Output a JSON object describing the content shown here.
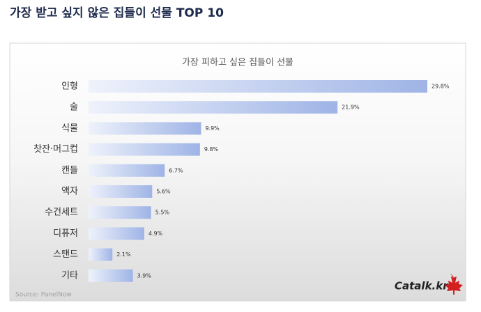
{
  "header": {
    "title": "가장 받고 싶지 않은 집들이 선물 TOP 10"
  },
  "chart_data": {
    "type": "bar",
    "orientation": "horizontal",
    "title": "가장 피하고 싶은 집들이 선물",
    "categories": [
      "인형",
      "술",
      "식물",
      "찻잔·머그컵",
      "캔들",
      "액자",
      "수건세트",
      "디퓨저",
      "스탠드",
      "기타"
    ],
    "values": [
      29.8,
      21.9,
      9.9,
      9.8,
      6.7,
      5.6,
      5.5,
      4.9,
      2.1,
      3.9
    ],
    "value_labels": [
      "29.8%",
      "21.9%",
      "9.9%",
      "9.8%",
      "6.7%",
      "5.6%",
      "5.5%",
      "4.9%",
      "2.1%",
      "3.9%"
    ],
    "color": "#9fb4e6"
  },
  "source": "Source: PanelNow",
  "logo": "Catalk.kr"
}
